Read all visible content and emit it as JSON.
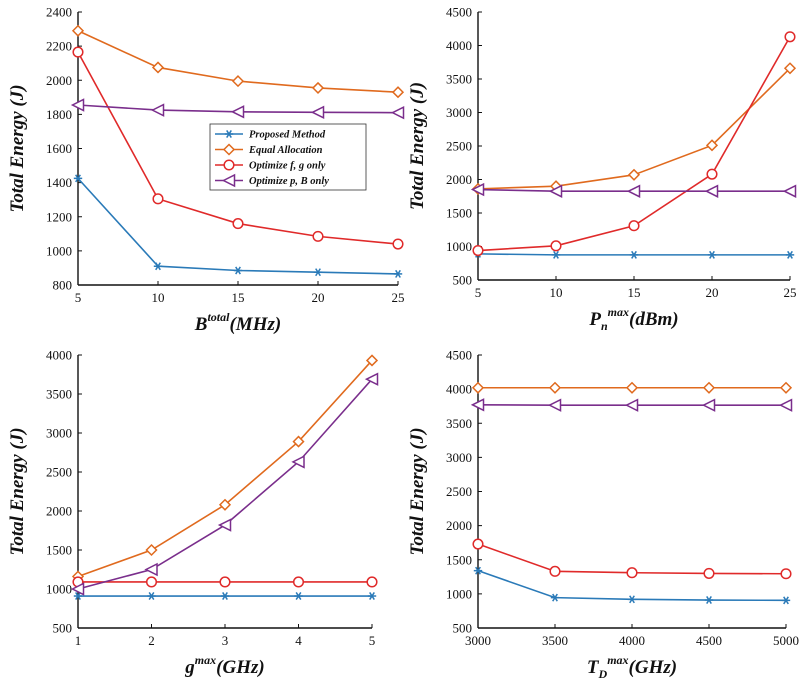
{
  "colors": {
    "proposed": "#2a7ab8",
    "equal": "#e06a1e",
    "optfg": "#e02a2a",
    "optpb": "#7a2e8c"
  },
  "legend": {
    "placement": "top-right (panel 1)",
    "entries": [
      {
        "key": "proposed",
        "label": "Proposed Method",
        "marker": "star"
      },
      {
        "key": "equal",
        "label": "Equal Allocation",
        "marker": "diamond"
      },
      {
        "key": "optfg",
        "label": "Optimize f, g only",
        "marker": "circle"
      },
      {
        "key": "optpb",
        "label": "Optimize p, B only",
        "marker": "triangle-left"
      }
    ]
  },
  "chart_data": [
    {
      "type": "line",
      "xlabel_main": "B",
      "xlabel_sup": "total",
      "xlabel_sub": "",
      "xlabel_unit": "(MHz)",
      "ylabel": "Total Energy (J)",
      "x": [
        5,
        10,
        15,
        20,
        25
      ],
      "xlim": [
        5,
        25
      ],
      "ylim": [
        800,
        2400
      ],
      "xticks": [
        5,
        10,
        15,
        20,
        25
      ],
      "yticks": [
        800,
        1000,
        1200,
        1400,
        1600,
        1800,
        2000,
        2200,
        2400
      ],
      "series": [
        {
          "key": "proposed",
          "name": "Proposed Method",
          "values": [
            1425,
            910,
            885,
            875,
            865
          ]
        },
        {
          "key": "equal",
          "name": "Equal Allocation",
          "values": [
            2290,
            2075,
            1995,
            1955,
            1930
          ]
        },
        {
          "key": "optfg",
          "name": "Optimize f, g only",
          "values": [
            2165,
            1305,
            1160,
            1085,
            1040
          ]
        },
        {
          "key": "optpb",
          "name": "Optimize p, B only",
          "values": [
            1855,
            1825,
            1815,
            1812,
            1810
          ]
        }
      ]
    },
    {
      "type": "line",
      "xlabel_main": "P",
      "xlabel_sup": "max",
      "xlabel_sub": "n",
      "xlabel_unit": "(dBm)",
      "ylabel": "Total Energy (J)",
      "x": [
        5,
        10,
        15,
        20,
        25
      ],
      "xlim": [
        5,
        25
      ],
      "ylim": [
        500,
        4500
      ],
      "xticks": [
        5,
        10,
        15,
        20,
        25
      ],
      "yticks": [
        500,
        1000,
        1500,
        2000,
        2500,
        3000,
        3500,
        4000,
        4500
      ],
      "series": [
        {
          "key": "proposed",
          "name": "Proposed Method",
          "values": [
            890,
            875,
            875,
            875,
            875
          ]
        },
        {
          "key": "equal",
          "name": "Equal Allocation",
          "values": [
            1860,
            1900,
            2070,
            2510,
            3660
          ]
        },
        {
          "key": "optfg",
          "name": "Optimize f, g only",
          "values": [
            940,
            1010,
            1310,
            2080,
            4130
          ]
        },
        {
          "key": "optpb",
          "name": "Optimize p, B only",
          "values": [
            1850,
            1825,
            1825,
            1825,
            1825
          ]
        }
      ]
    },
    {
      "type": "line",
      "xlabel_main": "g",
      "xlabel_sup": "max",
      "xlabel_sub": "",
      "xlabel_unit": "(GHz)",
      "ylabel": "Total Energy (J)",
      "x": [
        1,
        2,
        3,
        4,
        5
      ],
      "xlim": [
        1,
        5
      ],
      "ylim": [
        500,
        4000
      ],
      "xticks": [
        1,
        2,
        3,
        4,
        5
      ],
      "yticks": [
        500,
        1000,
        1500,
        2000,
        2500,
        3000,
        3500,
        4000
      ],
      "series": [
        {
          "key": "proposed",
          "name": "Proposed Method",
          "values": [
            910,
            910,
            910,
            910,
            910
          ]
        },
        {
          "key": "equal",
          "name": "Equal Allocation",
          "values": [
            1160,
            1500,
            2080,
            2890,
            3930
          ]
        },
        {
          "key": "optfg",
          "name": "Optimize f, g only",
          "values": [
            1090,
            1090,
            1090,
            1090,
            1090
          ]
        },
        {
          "key": "optpb",
          "name": "Optimize p, B only",
          "values": [
            1000,
            1250,
            1820,
            2630,
            3690
          ]
        }
      ]
    },
    {
      "type": "line",
      "xlabel_main": "T",
      "xlabel_sup": "max",
      "xlabel_sub": "D",
      "xlabel_unit": "(GHz)",
      "ylabel": "Total Energy (J)",
      "x": [
        3000,
        3500,
        4000,
        4500,
        5000
      ],
      "xlim": [
        3000,
        5000
      ],
      "ylim": [
        500,
        4500
      ],
      "xticks": [
        3000,
        3500,
        4000,
        4500,
        5000
      ],
      "yticks": [
        500,
        1000,
        1500,
        2000,
        2500,
        3000,
        3500,
        4000,
        4500
      ],
      "series": [
        {
          "key": "proposed",
          "name": "Proposed Method",
          "values": [
            1340,
            945,
            920,
            910,
            905
          ]
        },
        {
          "key": "equal",
          "name": "Equal Allocation",
          "values": [
            4020,
            4020,
            4020,
            4020,
            4020
          ]
        },
        {
          "key": "optfg",
          "name": "Optimize f, g only",
          "values": [
            1730,
            1330,
            1310,
            1300,
            1295
          ]
        },
        {
          "key": "optpb",
          "name": "Optimize p, B only",
          "values": [
            3770,
            3765,
            3765,
            3765,
            3765
          ]
        }
      ]
    }
  ]
}
